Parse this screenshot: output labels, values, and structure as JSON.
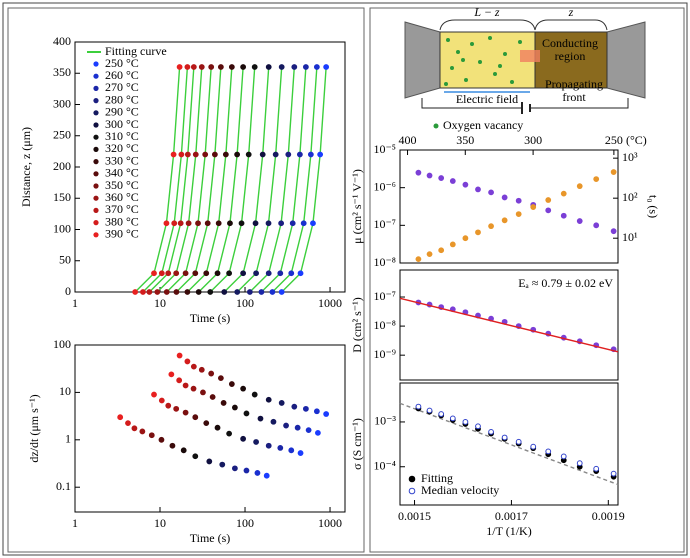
{
  "diagram": {
    "length_label": "L − z",
    "z_label": "z",
    "conducting_region": [
      "Conducting",
      "region"
    ],
    "electric_field": "Electric field",
    "propagating_front": [
      "Propagating",
      "front"
    ],
    "oxygen_vacancy": "Oxygen vacancy"
  },
  "chart_data": [
    {
      "type": "line",
      "xlabel": "Time (s)",
      "ylabel": "Distance, z (μm)",
      "xlog": true,
      "xlim": [
        1,
        1500
      ],
      "xticks": [
        1,
        10,
        100,
        1000
      ],
      "ylim": [
        0,
        400
      ],
      "yticks": [
        0,
        50,
        100,
        150,
        200,
        250,
        300,
        350,
        400
      ],
      "fit_name": "Fitting curve",
      "fit_color": "#3ccf3c",
      "series": [
        {
          "name": "250 °C",
          "color": "#1a3cff",
          "x": [
            270,
            450,
            630,
            765,
            900
          ],
          "values": [
            0,
            30,
            110,
            220,
            360
          ]
        },
        {
          "name": "260 °C",
          "color": "#1a30d0",
          "x": [
            210,
            350,
            490,
            595,
            700
          ],
          "values": [
            0,
            30,
            110,
            220,
            360
          ]
        },
        {
          "name": "270 °C",
          "color": "#1b26a8",
          "x": [
            156,
            260,
            364,
            442,
            520
          ],
          "values": [
            0,
            30,
            110,
            220,
            360
          ]
        },
        {
          "name": "280 °C",
          "color": "#1b1f80",
          "x": [
            114,
            190,
            266,
            323,
            380
          ],
          "values": [
            0,
            30,
            110,
            220,
            360
          ]
        },
        {
          "name": "290 °C",
          "color": "#151a60",
          "x": [
            81,
            135,
            189,
            229.5,
            270
          ],
          "values": [
            0,
            30,
            110,
            220,
            360
          ]
        },
        {
          "name": "300 °C",
          "color": "#101040",
          "x": [
            57,
            95,
            133,
            161.5,
            190
          ],
          "values": [
            0,
            30,
            110,
            220,
            360
          ]
        },
        {
          "name": "310 °C",
          "color": "#111111",
          "x": [
            39,
            65,
            91,
            110.5,
            130
          ],
          "values": [
            0,
            30,
            110,
            220,
            360
          ]
        },
        {
          "name": "320 °C",
          "color": "#1a0a0a",
          "x": [
            28.5,
            47.5,
            66.5,
            80.75,
            95
          ],
          "values": [
            0,
            30,
            110,
            220,
            360
          ]
        },
        {
          "name": "330 °C",
          "color": "#3a0a0a",
          "x": [
            21,
            35,
            49,
            59.5,
            70
          ],
          "values": [
            0,
            30,
            110,
            220,
            360
          ]
        },
        {
          "name": "340 °C",
          "color": "#5a0c0c",
          "x": [
            15.6,
            26,
            36.4,
            44.2,
            52
          ],
          "values": [
            0,
            30,
            110,
            220,
            360
          ]
        },
        {
          "name": "350 °C",
          "color": "#7a1010",
          "x": [
            12,
            20,
            28,
            34,
            40
          ],
          "values": [
            0,
            30,
            110,
            220,
            360
          ]
        },
        {
          "name": "360 °C",
          "color": "#9a1414",
          "x": [
            9.3,
            15.5,
            21.7,
            26.35,
            31
          ],
          "values": [
            0,
            30,
            110,
            220,
            360
          ]
        },
        {
          "name": "370 °C",
          "color": "#b81818",
          "x": [
            7.5,
            12.5,
            17.5,
            21.25,
            25
          ],
          "values": [
            0,
            30,
            110,
            220,
            360
          ]
        },
        {
          "name": "380 °C",
          "color": "#d41c1c",
          "x": [
            6.3,
            10.5,
            14.7,
            17.85,
            21
          ],
          "values": [
            0,
            30,
            110,
            220,
            360
          ]
        },
        {
          "name": "390 °C",
          "color": "#e82020",
          "x": [
            5.1,
            8.5,
            11.9,
            14.45,
            17
          ],
          "values": [
            0,
            30,
            110,
            220,
            360
          ]
        }
      ]
    },
    {
      "type": "scatter",
      "xlabel": "Time (s)",
      "ylabel": "dz/dt (μm s⁻¹)",
      "xlog": true,
      "xlim": [
        1,
        1500
      ],
      "xticks": [
        1,
        10,
        100,
        1000
      ],
      "ylog": true,
      "ylim": [
        0.03,
        100
      ],
      "yticks": [
        0.1,
        1,
        10,
        100
      ],
      "series": [
        {
          "color": "#1a3cff",
          "x": [
            180,
            450,
            720,
            900
          ],
          "values": [
            0.175,
            0.525,
            1.4,
            3.5
          ]
        },
        {
          "color": "#1a30d0",
          "x": [
            140,
            350,
            560,
            700
          ],
          "values": [
            0.2,
            0.6,
            1.6,
            4
          ]
        },
        {
          "color": "#1b26a8",
          "x": [
            104,
            260,
            416,
            520
          ],
          "values": [
            0.225,
            0.675,
            1.8,
            4.5
          ]
        },
        {
          "color": "#1b1f80",
          "x": [
            76,
            190,
            304,
            380
          ],
          "values": [
            0.25,
            0.75,
            2,
            5
          ]
        },
        {
          "color": "#151a60",
          "x": [
            54,
            135,
            216,
            270
          ],
          "values": [
            0.3,
            0.9,
            2.4,
            6
          ]
        },
        {
          "color": "#101040",
          "x": [
            38,
            95,
            152,
            190
          ],
          "values": [
            0.35,
            1.05,
            2.8,
            7
          ]
        },
        {
          "color": "#111111",
          "x": [
            26,
            65,
            104,
            130
          ],
          "values": [
            0.45,
            1.35,
            3.6,
            9
          ]
        },
        {
          "color": "#1a0a0a",
          "x": [
            19,
            47.5,
            76,
            95
          ],
          "values": [
            0.6,
            1.8,
            4.8,
            12
          ]
        },
        {
          "color": "#3a0a0a",
          "x": [
            14,
            35,
            56,
            70
          ],
          "values": [
            0.75,
            2.25,
            6,
            15
          ]
        },
        {
          "color": "#5a0c0c",
          "x": [
            10.4,
            26,
            41.6,
            52
          ],
          "values": [
            1,
            3,
            8,
            20
          ]
        },
        {
          "color": "#7a1010",
          "x": [
            8,
            20,
            32,
            40
          ],
          "values": [
            1.25,
            3.75,
            10,
            25
          ]
        },
        {
          "color": "#9a1414",
          "x": [
            6.2,
            15.5,
            24.8,
            31
          ],
          "values": [
            1.5,
            4.5,
            12,
            30
          ]
        },
        {
          "color": "#b81818",
          "x": [
            5,
            12.5,
            20,
            25
          ],
          "values": [
            1.75,
            5.25,
            14,
            35
          ]
        },
        {
          "color": "#d41c1c",
          "x": [
            4.2,
            10.5,
            16.8,
            21
          ],
          "values": [
            2.25,
            6.75,
            18,
            45
          ]
        },
        {
          "color": "#e82020",
          "x": [
            3.4,
            8.5,
            13.6,
            17
          ],
          "values": [
            3,
            9,
            24,
            60
          ]
        }
      ]
    },
    {
      "type": "scatter",
      "ylabel": "μ (cm² s⁻¹ V⁻¹)",
      "y2label": "t₀ (s)",
      "top_label": "(°C)",
      "top_ticks": [
        400,
        350,
        300,
        250
      ],
      "xlim": [
        0.00147,
        0.00192
      ],
      "ylog": true,
      "ylim": [
        1e-08,
        1e-05
      ],
      "yticks": [
        {
          "value": 1e-08,
          "label": "10⁻⁸"
        },
        {
          "value": 1e-07,
          "label": "10⁻⁷"
        },
        {
          "value": 1e-06,
          "label": "10⁻⁶"
        },
        {
          "value": 1e-05,
          "label": "10⁻⁵"
        }
      ],
      "y2log": true,
      "y2lim": [
        2.4,
        1600
      ],
      "y2ticks": [
        {
          "value": 10,
          "label": "10¹"
        },
        {
          "value": 100,
          "label": "10²"
        },
        {
          "value": 1000,
          "label": "10³"
        }
      ],
      "series": [
        {
          "color": "#7b3fd6",
          "x": [
            0.001508,
            0.001531,
            0.001555,
            0.001579,
            0.001605,
            0.001631,
            0.001658,
            0.001686,
            0.001715,
            0.001745,
            0.001776,
            0.001808,
            0.001841,
            0.001875,
            0.001911
          ],
          "values": [
            2.5e-06,
            2.1e-06,
            1.8e-06,
            1.5e-06,
            1.2e-06,
            9e-07,
            7.5e-07,
            5.5e-07,
            4.5e-07,
            3.5e-07,
            2.5e-07,
            1.8e-07,
            1.3e-07,
            1e-07,
            7e-08
          ]
        },
        {
          "color": "#e8962a",
          "axis": "y2",
          "x": [
            0.001508,
            0.001531,
            0.001555,
            0.001579,
            0.001605,
            0.001631,
            0.001658,
            0.001686,
            0.001715,
            0.001745,
            0.001776,
            0.001808,
            0.001841,
            0.001875,
            0.001911
          ],
          "values": [
            3,
            4,
            5,
            7,
            10,
            14,
            20,
            28,
            40,
            60,
            90,
            130,
            200,
            300,
            450
          ]
        }
      ]
    },
    {
      "type": "scatter",
      "ylabel": "D (cm² s⁻¹)",
      "annotation": "Eₐ ≈ 0.79 ± 0.02 eV",
      "annotation_color": "#e02020",
      "xlim": [
        0.00147,
        0.00192
      ],
      "ylog": true,
      "ylim": [
        1.4e-10,
        8.5e-07
      ],
      "yticks": [
        {
          "value": 1e-09,
          "label": "10⁻⁹"
        },
        {
          "value": 1e-08,
          "label": "10⁻⁸"
        },
        {
          "value": 1e-07,
          "label": "10⁻⁷"
        }
      ],
      "series": [
        {
          "color": "#7b3fd6",
          "x": [
            0.001508,
            0.001531,
            0.001555,
            0.001579,
            0.001605,
            0.001631,
            0.001658,
            0.001686,
            0.001715,
            0.001745,
            0.001776,
            0.001808,
            0.001841,
            0.001875,
            0.001911
          ],
          "values": [
            6.5e-08,
            5.5e-08,
            4.5e-08,
            3.8e-08,
            3e-08,
            2.3e-08,
            1.8e-08,
            1.4e-08,
            1e-08,
            7.5e-09,
            5.5e-09,
            4e-09,
            3e-09,
            2.2e-09,
            1.6e-09
          ]
        },
        {
          "color": "#e02020",
          "style": "line",
          "x": [
            0.00147,
            0.00192
          ],
          "values": [
            9e-08,
            1.3e-09
          ]
        }
      ]
    },
    {
      "type": "scatter",
      "xlabel": "1/T (1/K)",
      "ylabel": "σ (S cm⁻¹)",
      "xlim": [
        0.00147,
        0.00192
      ],
      "xticks": [
        0.0015,
        0.0017,
        0.0019
      ],
      "ylog": true,
      "ylim": [
        1.4e-05,
        0.0074
      ],
      "yticks": [
        {
          "value": 0.0001,
          "label": "10⁻⁴"
        },
        {
          "value": 0.001,
          "label": "10⁻³"
        }
      ],
      "series": [
        {
          "color": "#888888",
          "style": "dashed",
          "x": [
            0.00147,
            0.00192
          ],
          "values": [
            0.0026,
            4e-05
          ]
        },
        {
          "name": "Fitting",
          "color": "#000000",
          "x": [
            0.001508,
            0.001531,
            0.001555,
            0.001579,
            0.001605,
            0.001631,
            0.001658,
            0.001686,
            0.001715,
            0.001745,
            0.001776,
            0.001808,
            0.001841,
            0.001875,
            0.001911
          ],
          "values": [
            0.002,
            0.0017,
            0.0014,
            0.0011,
            0.0009,
            0.0007,
            0.00055,
            0.00042,
            0.00033,
            0.00026,
            0.00019,
            0.00014,
            0.0001,
            8e-05,
            6e-05
          ]
        },
        {
          "name": "Median velocity",
          "color": "#3344cc",
          "style": "open",
          "x": [
            0.001508,
            0.001531,
            0.001555,
            0.001579,
            0.001605,
            0.001631,
            0.001658,
            0.001686,
            0.001715,
            0.001745,
            0.001776,
            0.001808,
            0.001841,
            0.001875,
            0.001911
          ],
          "values": [
            0.0022,
            0.0018,
            0.0015,
            0.0012,
            0.001,
            0.0008,
            0.0006,
            0.00045,
            0.00036,
            0.00028,
            0.00022,
            0.00017,
            0.00012,
            9e-05,
            7e-05
          ]
        }
      ]
    }
  ]
}
